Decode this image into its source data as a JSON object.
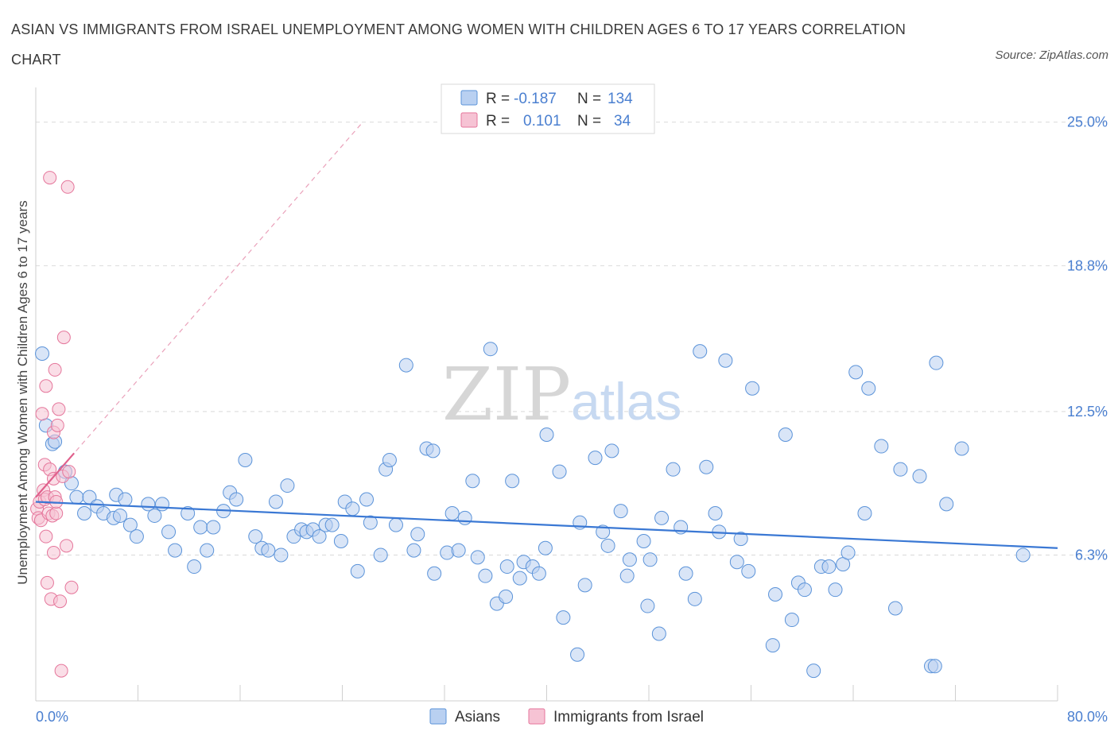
{
  "title": "ASIAN VS IMMIGRANTS FROM ISRAEL UNEMPLOYMENT AMONG WOMEN WITH CHILDREN AGES 6 TO 17 YEARS CORRELATION CHART",
  "source": "Source: ZipAtlas.com",
  "watermark": {
    "zip": "ZIP",
    "atlas": "atlas"
  },
  "colors": {
    "asians": "#5b93d9",
    "asians_fill": "#b9d0f1",
    "israel": "#e5769b",
    "israel_fill": "#f6c3d4",
    "axis_text": "#4a7fd0",
    "grid": "#d9d9d9"
  },
  "legend": {
    "asians": {
      "r_label": "R =",
      "r_value": "-0.187",
      "n_label": "N =",
      "n_value": "134"
    },
    "israel": {
      "r_label": "R =",
      "r_value": "0.101",
      "n_label": "N =",
      "n_value": "34"
    }
  },
  "bottom_legend": {
    "asians": "Asians",
    "israel": "Immigrants from Israel"
  },
  "chart_data": {
    "type": "scatter",
    "title": "ASIAN VS IMMIGRANTS FROM ISRAEL UNEMPLOYMENT AMONG WOMEN WITH CHILDREN AGES 6 TO 17 YEARS CORRELATION CHART",
    "xlabel": "",
    "ylabel": "Unemployment Among Women with Children Ages 6 to 17 years",
    "xlim": [
      0,
      80
    ],
    "ylim": [
      0,
      26.5
    ],
    "x_tick_labels": [
      "0.0%",
      "80.0%"
    ],
    "y_ticks": [
      6.3,
      12.5,
      18.8,
      25.0
    ],
    "y_tick_labels": [
      "6.3%",
      "12.5%",
      "18.8%",
      "25.0%"
    ],
    "grid": true,
    "legend_position": "top-center",
    "series": [
      {
        "name": "Asians",
        "color": "#5b93d9",
        "trend": {
          "x0": 0,
          "y0": 8.6,
          "x1": 80,
          "y1": 6.6
        },
        "points": [
          [
            0.5,
            15.0
          ],
          [
            0.8,
            11.9
          ],
          [
            1.3,
            11.1
          ],
          [
            1.5,
            11.2
          ],
          [
            2.3,
            9.9
          ],
          [
            2.8,
            9.4
          ],
          [
            3.2,
            8.8
          ],
          [
            4.2,
            8.8
          ],
          [
            3.8,
            8.1
          ],
          [
            4.8,
            8.4
          ],
          [
            5.3,
            8.1
          ],
          [
            6.1,
            7.9
          ],
          [
            6.3,
            8.9
          ],
          [
            6.6,
            8.0
          ],
          [
            7.0,
            8.7
          ],
          [
            7.4,
            7.6
          ],
          [
            7.9,
            7.1
          ],
          [
            8.8,
            8.5
          ],
          [
            9.3,
            8.0
          ],
          [
            9.9,
            8.5
          ],
          [
            10.4,
            7.3
          ],
          [
            10.9,
            6.5
          ],
          [
            11.9,
            8.1
          ],
          [
            12.4,
            5.8
          ],
          [
            12.9,
            7.5
          ],
          [
            13.4,
            6.5
          ],
          [
            13.9,
            7.5
          ],
          [
            14.7,
            8.2
          ],
          [
            15.2,
            9.0
          ],
          [
            15.7,
            8.7
          ],
          [
            16.4,
            10.4
          ],
          [
            17.2,
            7.1
          ],
          [
            17.7,
            6.6
          ],
          [
            18.2,
            6.5
          ],
          [
            18.8,
            8.6
          ],
          [
            19.2,
            6.3
          ],
          [
            19.7,
            9.3
          ],
          [
            20.2,
            7.1
          ],
          [
            20.8,
            7.4
          ],
          [
            21.2,
            7.3
          ],
          [
            21.7,
            7.4
          ],
          [
            22.2,
            7.1
          ],
          [
            22.7,
            7.6
          ],
          [
            23.2,
            7.6
          ],
          [
            23.9,
            6.9
          ],
          [
            24.2,
            8.6
          ],
          [
            24.8,
            8.3
          ],
          [
            25.2,
            5.6
          ],
          [
            25.9,
            8.7
          ],
          [
            26.2,
            7.7
          ],
          [
            27.0,
            6.3
          ],
          [
            27.4,
            10.0
          ],
          [
            27.7,
            10.4
          ],
          [
            28.2,
            7.6
          ],
          [
            29.0,
            14.5
          ],
          [
            29.6,
            6.5
          ],
          [
            29.9,
            7.2
          ],
          [
            30.6,
            10.9
          ],
          [
            31.1,
            10.8
          ],
          [
            31.2,
            5.5
          ],
          [
            32.2,
            6.4
          ],
          [
            32.6,
            8.1
          ],
          [
            33.1,
            6.5
          ],
          [
            33.6,
            7.9
          ],
          [
            34.2,
            9.5
          ],
          [
            34.6,
            6.2
          ],
          [
            35.2,
            5.4
          ],
          [
            35.6,
            15.2
          ],
          [
            36.1,
            4.2
          ],
          [
            36.8,
            4.5
          ],
          [
            36.9,
            5.8
          ],
          [
            37.3,
            9.5
          ],
          [
            37.9,
            5.3
          ],
          [
            38.2,
            6.0
          ],
          [
            38.9,
            5.8
          ],
          [
            39.4,
            5.5
          ],
          [
            40.0,
            11.5
          ],
          [
            39.9,
            6.6
          ],
          [
            41.0,
            9.9
          ],
          [
            41.3,
            3.6
          ],
          [
            42.4,
            2.0
          ],
          [
            42.6,
            7.7
          ],
          [
            43.0,
            5.0
          ],
          [
            43.8,
            10.5
          ],
          [
            44.4,
            7.3
          ],
          [
            44.8,
            6.7
          ],
          [
            45.1,
            10.8
          ],
          [
            45.8,
            8.2
          ],
          [
            46.3,
            5.4
          ],
          [
            46.5,
            6.1
          ],
          [
            47.6,
            6.9
          ],
          [
            47.9,
            4.1
          ],
          [
            48.1,
            6.1
          ],
          [
            48.8,
            2.9
          ],
          [
            49.0,
            7.9
          ],
          [
            49.9,
            10.0
          ],
          [
            50.5,
            7.5
          ],
          [
            50.9,
            5.5
          ],
          [
            51.6,
            4.4
          ],
          [
            52.0,
            15.1
          ],
          [
            52.5,
            10.1
          ],
          [
            53.2,
            8.1
          ],
          [
            53.5,
            7.3
          ],
          [
            54.0,
            14.7
          ],
          [
            54.9,
            6.0
          ],
          [
            55.2,
            7.0
          ],
          [
            55.8,
            5.6
          ],
          [
            56.1,
            13.5
          ],
          [
            57.7,
            2.4
          ],
          [
            57.9,
            4.6
          ],
          [
            58.7,
            11.5
          ],
          [
            59.2,
            3.5
          ],
          [
            59.7,
            5.1
          ],
          [
            60.2,
            4.8
          ],
          [
            60.9,
            1.3
          ],
          [
            61.5,
            5.8
          ],
          [
            62.1,
            5.8
          ],
          [
            62.6,
            4.8
          ],
          [
            63.2,
            5.9
          ],
          [
            63.6,
            6.4
          ],
          [
            64.2,
            14.2
          ],
          [
            64.9,
            8.1
          ],
          [
            65.2,
            13.5
          ],
          [
            66.2,
            11.0
          ],
          [
            67.3,
            4.0
          ],
          [
            67.7,
            10.0
          ],
          [
            69.2,
            9.7
          ],
          [
            70.5,
            14.6
          ],
          [
            71.3,
            8.5
          ],
          [
            72.5,
            10.9
          ],
          [
            70.1,
            1.5
          ],
          [
            70.4,
            1.5
          ],
          [
            77.3,
            6.3
          ]
        ]
      },
      {
        "name": "Immigrants from Israel",
        "color": "#e5769b",
        "trend": {
          "x0": 0,
          "y0": 8.8,
          "x1": 3,
          "y1": 10.7
        },
        "trend_extended": {
          "x0": 0,
          "y0": 8.8,
          "x1": 25.6,
          "y1": 25.0
        },
        "points": [
          [
            0.1,
            8.3
          ],
          [
            0.2,
            7.9
          ],
          [
            0.3,
            8.6
          ],
          [
            0.4,
            7.8
          ],
          [
            0.5,
            12.4
          ],
          [
            0.6,
            9.1
          ],
          [
            0.7,
            8.7
          ],
          [
            0.7,
            10.2
          ],
          [
            0.8,
            13.6
          ],
          [
            0.8,
            7.1
          ],
          [
            0.9,
            5.1
          ],
          [
            0.9,
            8.8
          ],
          [
            1.0,
            8.1
          ],
          [
            1.1,
            10.0
          ],
          [
            1.1,
            22.6
          ],
          [
            1.2,
            4.4
          ],
          [
            1.3,
            8.0
          ],
          [
            1.4,
            11.6
          ],
          [
            1.4,
            6.4
          ],
          [
            1.4,
            9.6
          ],
          [
            1.5,
            14.3
          ],
          [
            1.5,
            8.8
          ],
          [
            1.6,
            8.1
          ],
          [
            1.6,
            8.6
          ],
          [
            1.7,
            11.9
          ],
          [
            1.8,
            12.6
          ],
          [
            1.9,
            4.3
          ],
          [
            2.0,
            1.3
          ],
          [
            2.1,
            9.7
          ],
          [
            2.2,
            15.7
          ],
          [
            2.4,
            6.7
          ],
          [
            2.5,
            22.2
          ],
          [
            2.6,
            9.9
          ],
          [
            2.8,
            4.9
          ]
        ]
      }
    ]
  }
}
